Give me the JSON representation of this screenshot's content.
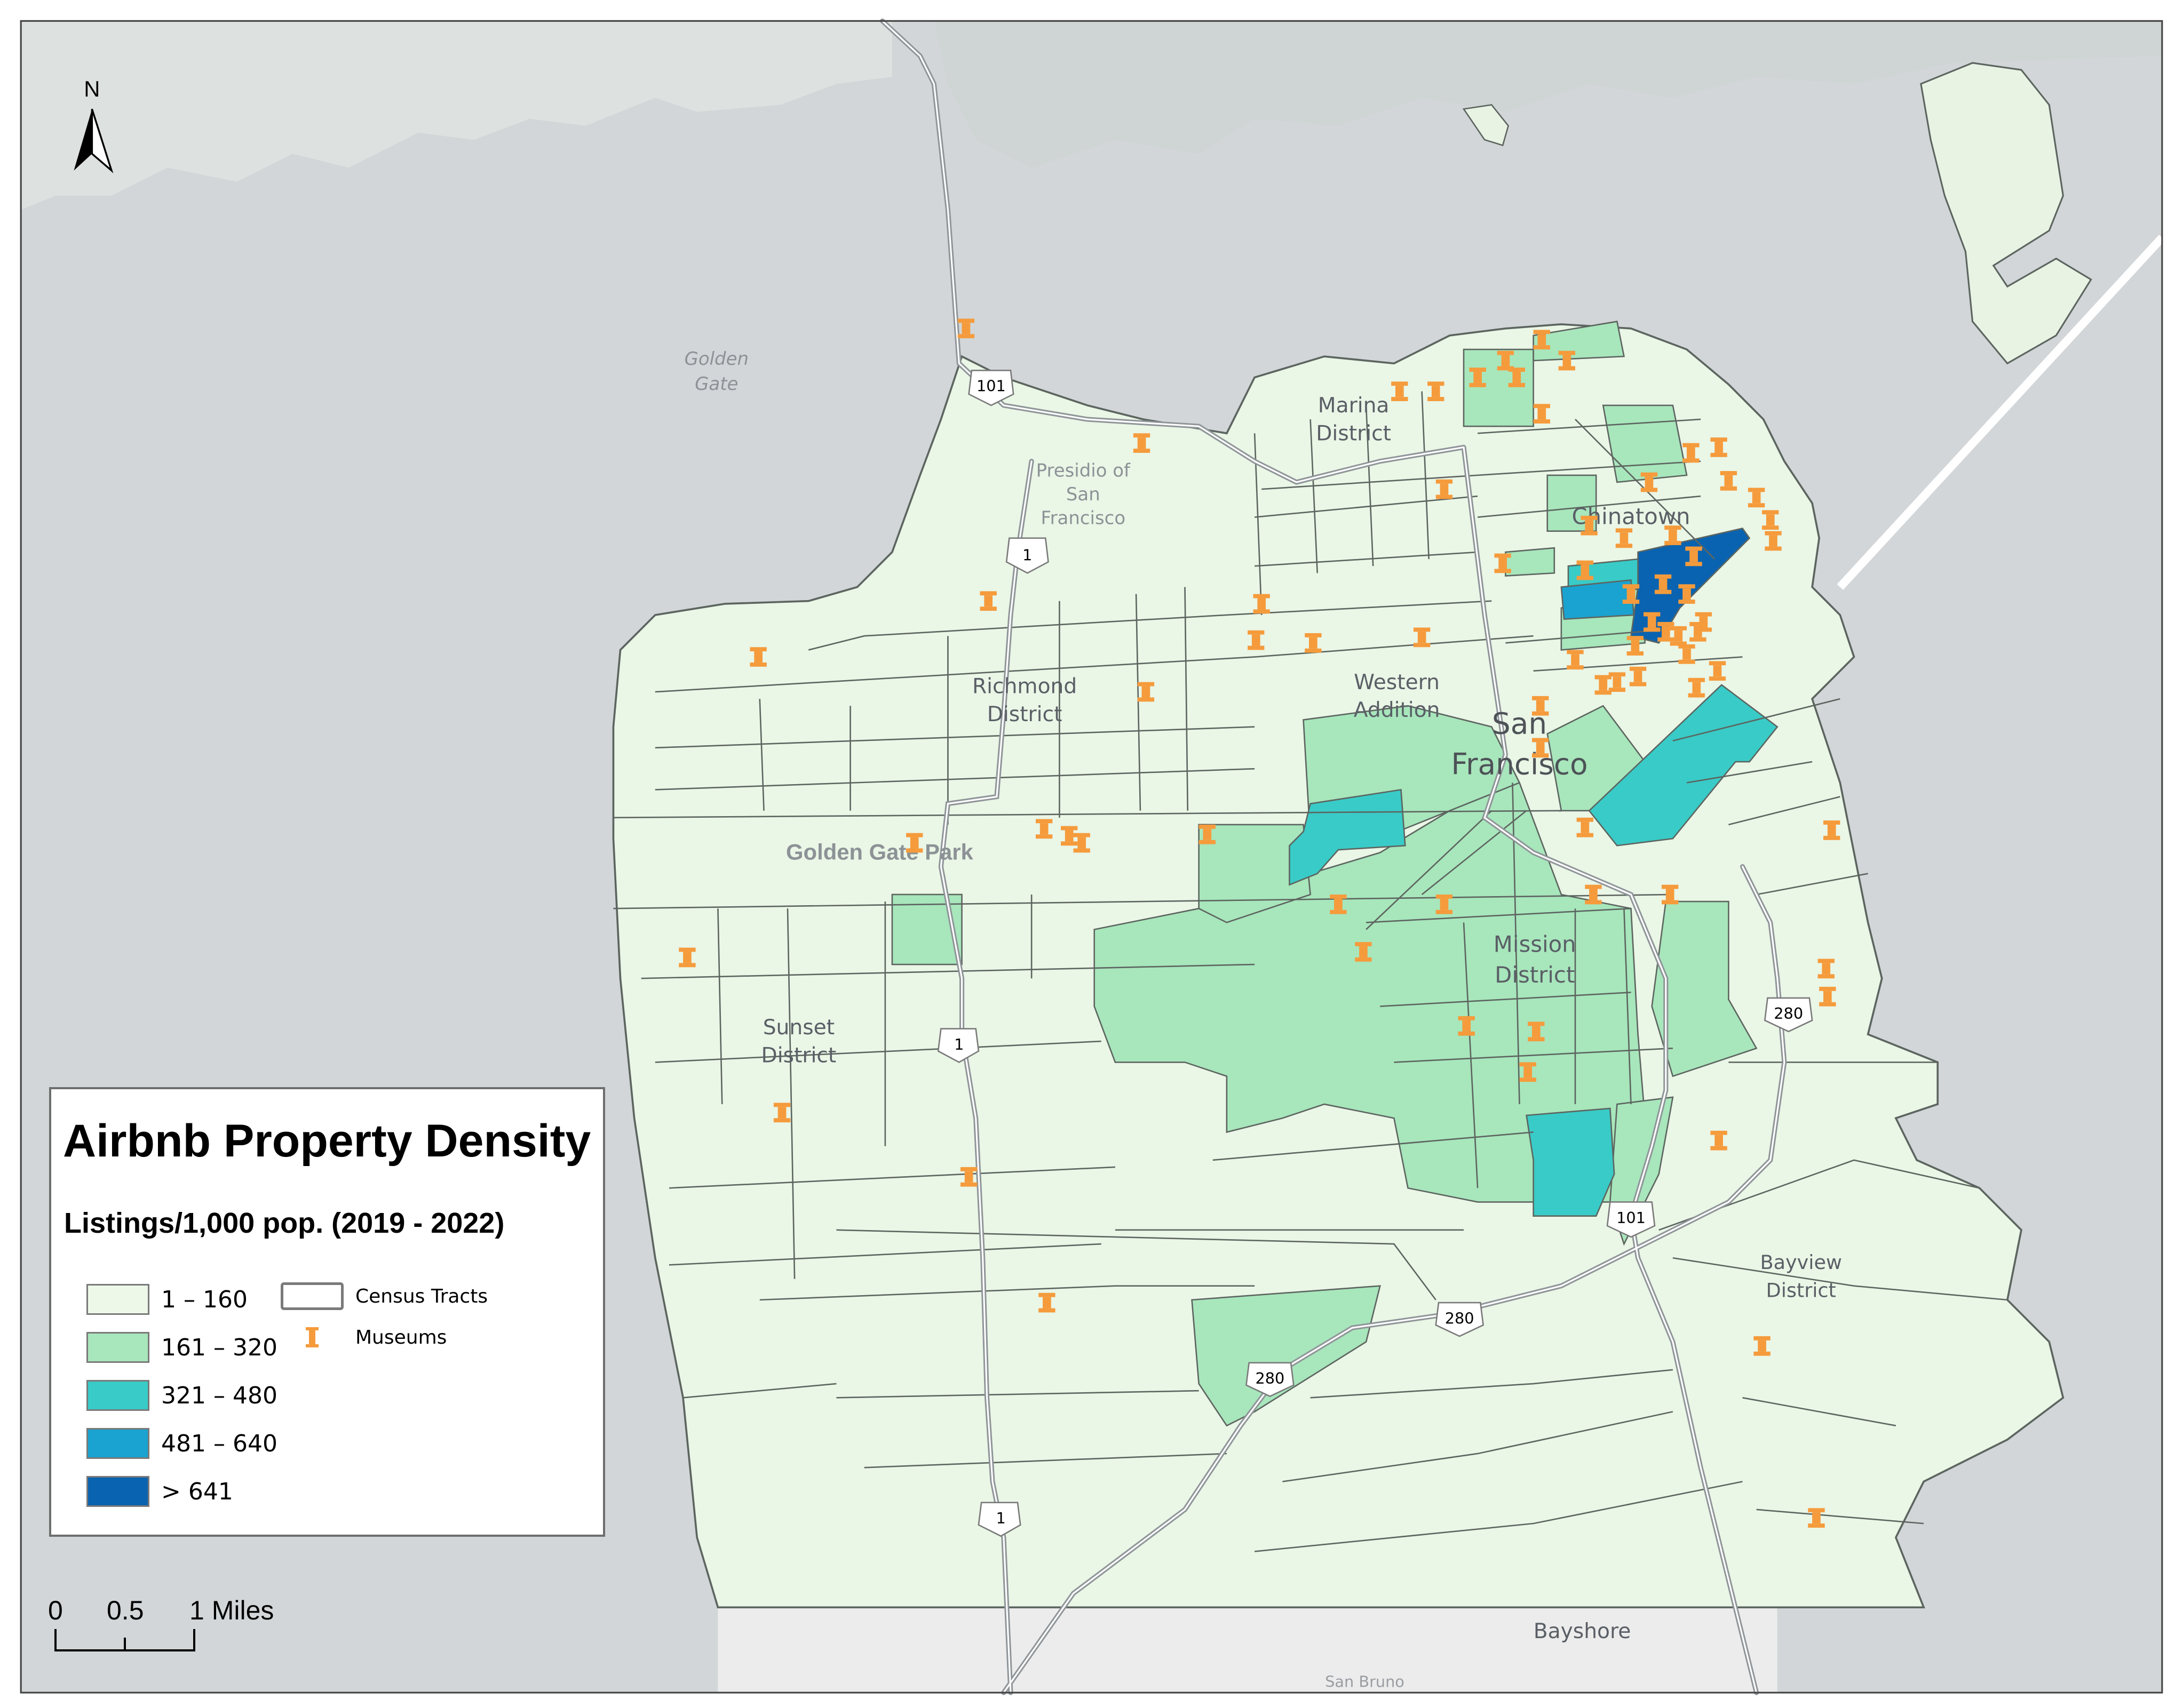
{
  "legend": {
    "title": "Airbnb Property Density",
    "subtitle": "Listings/1,000 pop. (2019 - 2022)",
    "classes": [
      {
        "label": "1 – 160",
        "color": "#edf8e9"
      },
      {
        "label": "161 – 320",
        "color": "#a8e6bc"
      },
      {
        "label": "321 – 480",
        "color": "#39cbc7"
      },
      {
        "label": "481 – 640",
        "color": "#1aa3d0"
      },
      {
        "label": "> 641",
        "color": "#0a63b0"
      }
    ],
    "census_tracts_label": "Census Tracts",
    "museums_label": "Museums"
  },
  "north_arrow": {
    "label": "N"
  },
  "scale_bar": {
    "labels": [
      "0",
      "0.5",
      "1 Miles"
    ]
  },
  "place_labels": {
    "golden_gate": [
      "Golden",
      "Gate"
    ],
    "presidio": [
      "Presidio of",
      "San",
      "Francisco"
    ],
    "marina": [
      "Marina",
      "District"
    ],
    "chinatown": "Chinatown",
    "richmond": [
      "Richmond",
      "District"
    ],
    "western_addition": [
      "Western",
      "Addition"
    ],
    "san_francisco": [
      "San",
      "Francisco"
    ],
    "golden_gate_park": "Golden Gate Park",
    "mission": [
      "Mission",
      "District"
    ],
    "sunset": [
      "Sunset",
      "District"
    ],
    "bayview": [
      "Bayview",
      "District"
    ],
    "bayshore": "Bayshore",
    "san_bruno": "San Bruno"
  },
  "highway_shields": {
    "us101": "101",
    "ca1": "1",
    "i280": "280"
  },
  "colors": {
    "water": "#d2d6d8",
    "land_outside": "#e6e8e6",
    "tract_border": "#5d6560",
    "museum": "#f59b3c",
    "road": "#9aa0a4"
  }
}
